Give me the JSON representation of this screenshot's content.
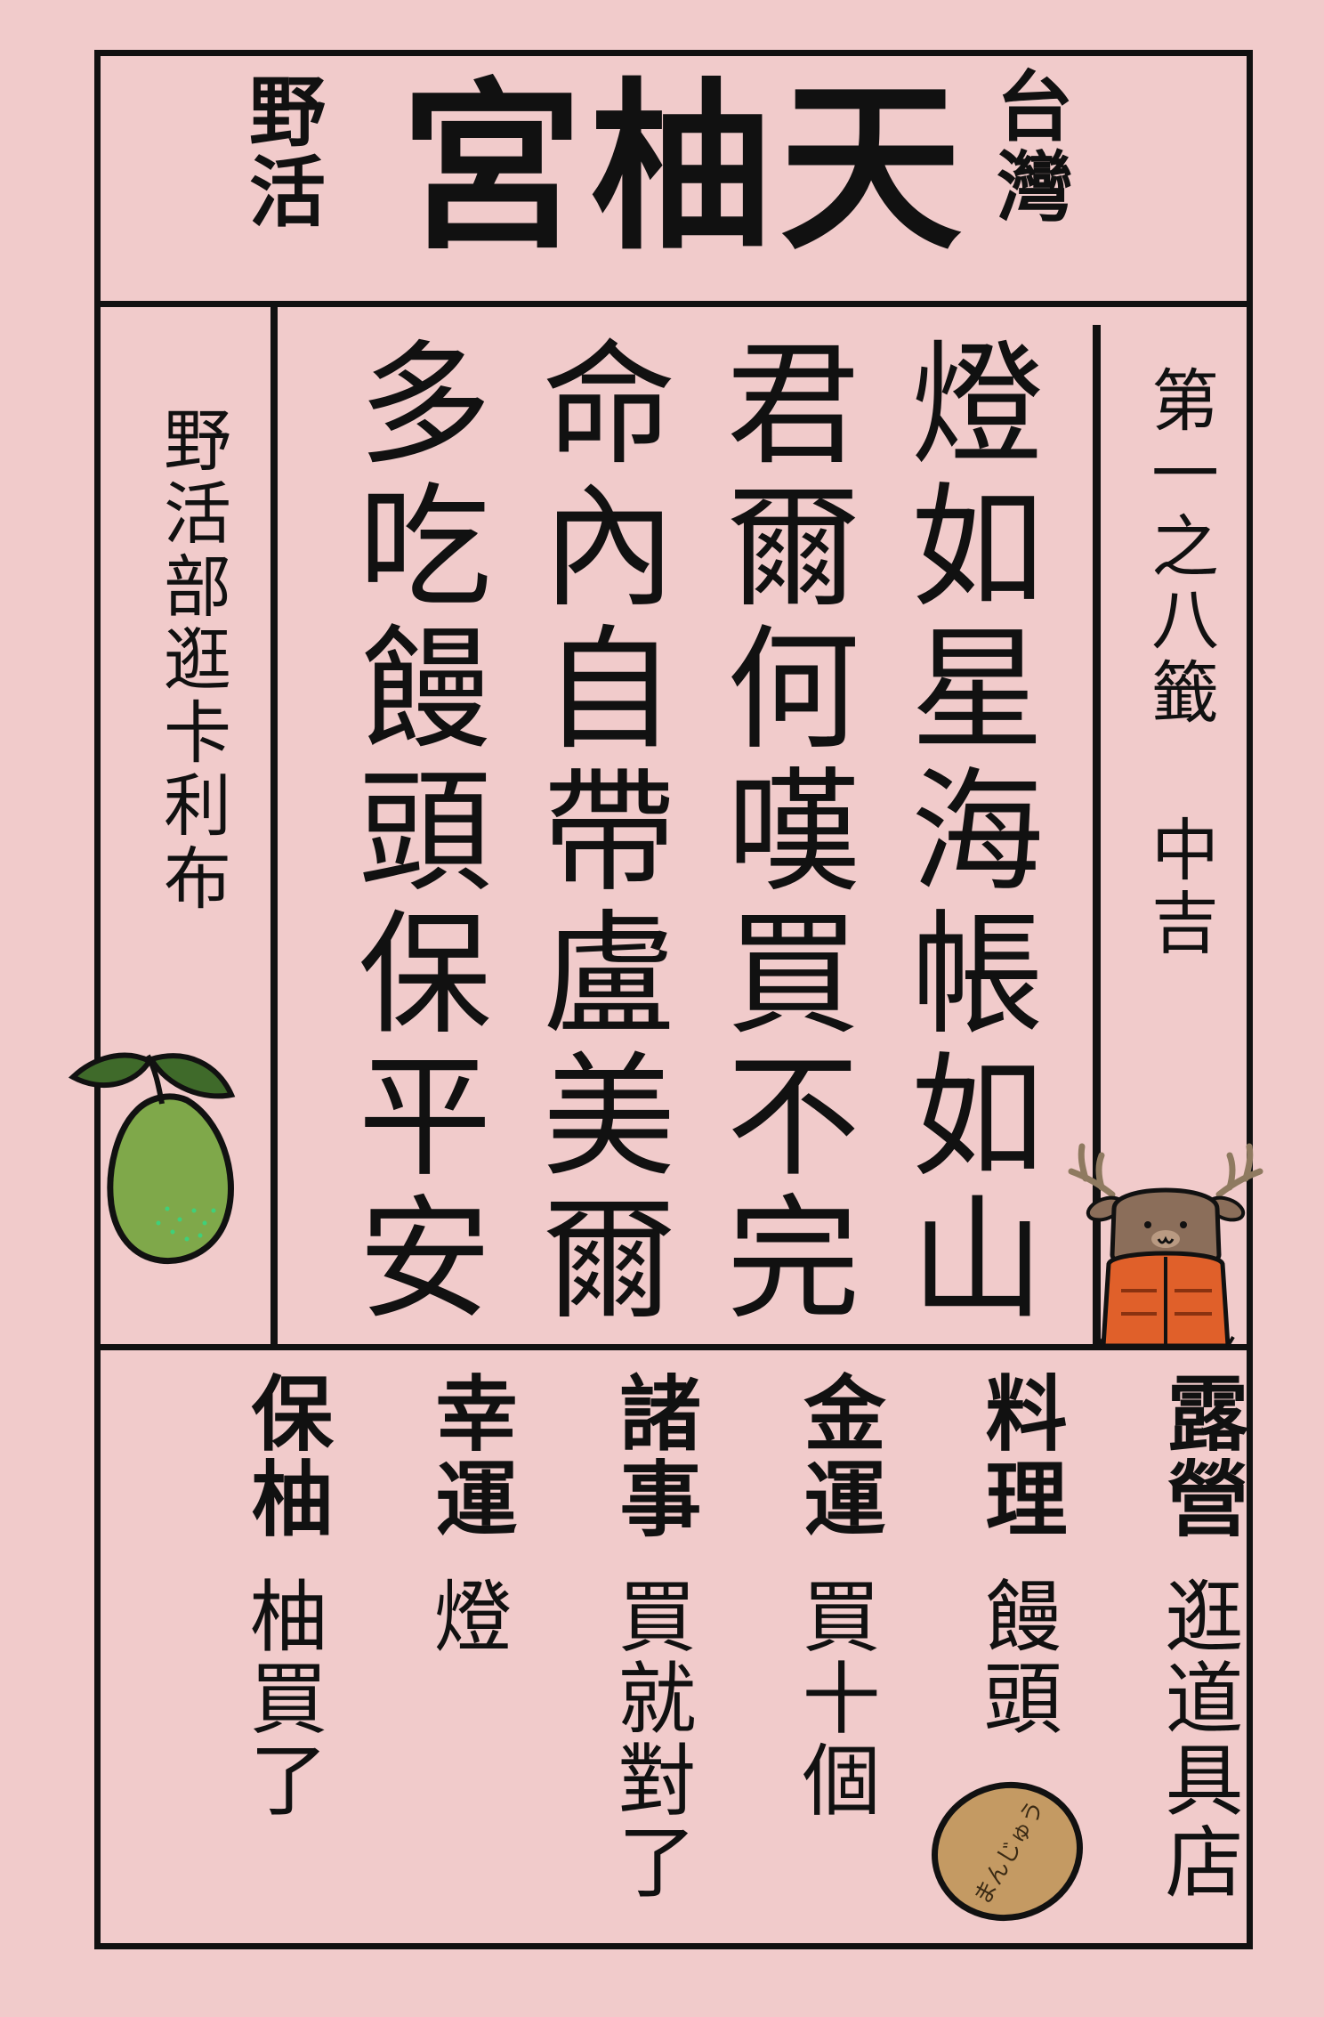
{
  "title": {
    "main": "宮柚天",
    "left": [
      "野",
      "活"
    ],
    "right": [
      "台",
      "灣"
    ]
  },
  "lot": "第一之八籤 中吉",
  "organizer": "野活部逛卡利布",
  "poem": {
    "lines": [
      "燈如星海帳如山",
      "君爾何嘆買不完",
      "命內自帶盧美爾",
      "多吃饅頭保平安"
    ]
  },
  "categories": [
    {
      "head": "露營",
      "value": "逛道具店"
    },
    {
      "head": "料理",
      "value": "饅頭"
    },
    {
      "head": "金運",
      "value": "買十個"
    },
    {
      "head": "諸事",
      "value": "買就對了"
    },
    {
      "head": "幸運",
      "value": "燈"
    },
    {
      "head": "保柚",
      "value": "柚買了"
    }
  ],
  "mascot_text": "まんじゅう",
  "colors": {
    "background": "#f1cbcb",
    "ink": "#111111",
    "pomelo": "#7fa84a",
    "pomelo_leaf": "#3f6a2a",
    "deer_body": "#8b6e5a",
    "deer_antler": "#b8a488",
    "jacket": "#e0602a",
    "bun": "#c49a63"
  },
  "icons": [
    "pomelo-icon",
    "deer-mascot-icon",
    "manju-bun-icon"
  ]
}
